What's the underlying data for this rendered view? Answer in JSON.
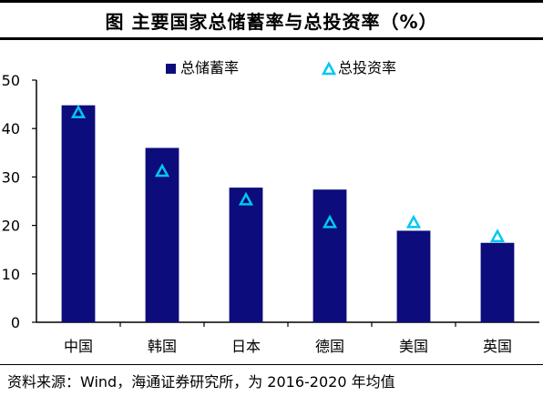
{
  "title": "图  主要国家总储蓄率与总投资率（%）",
  "source": "资料来源：Wind，海通证券研究所，为 2016-2020 年均值",
  "colors": {
    "bar": "#0C0C7C",
    "marker": "#00C8F0"
  },
  "chart_data": {
    "type": "bar",
    "categories": [
      "中国",
      "韩国",
      "日本",
      "德国",
      "美国",
      "英国"
    ],
    "series": [
      {
        "name": "总储蓄率",
        "kind": "bar",
        "values": [
          44.8,
          36.0,
          27.8,
          27.4,
          18.9,
          16.4
        ]
      },
      {
        "name": "总投资率",
        "kind": "marker",
        "values": [
          43.3,
          31.2,
          25.3,
          20.6,
          20.6,
          17.7
        ]
      }
    ],
    "yticks": [
      0,
      10,
      20,
      30,
      40,
      50
    ],
    "ylim": [
      0,
      50
    ],
    "legend_position": "top-center",
    "grid": false
  }
}
